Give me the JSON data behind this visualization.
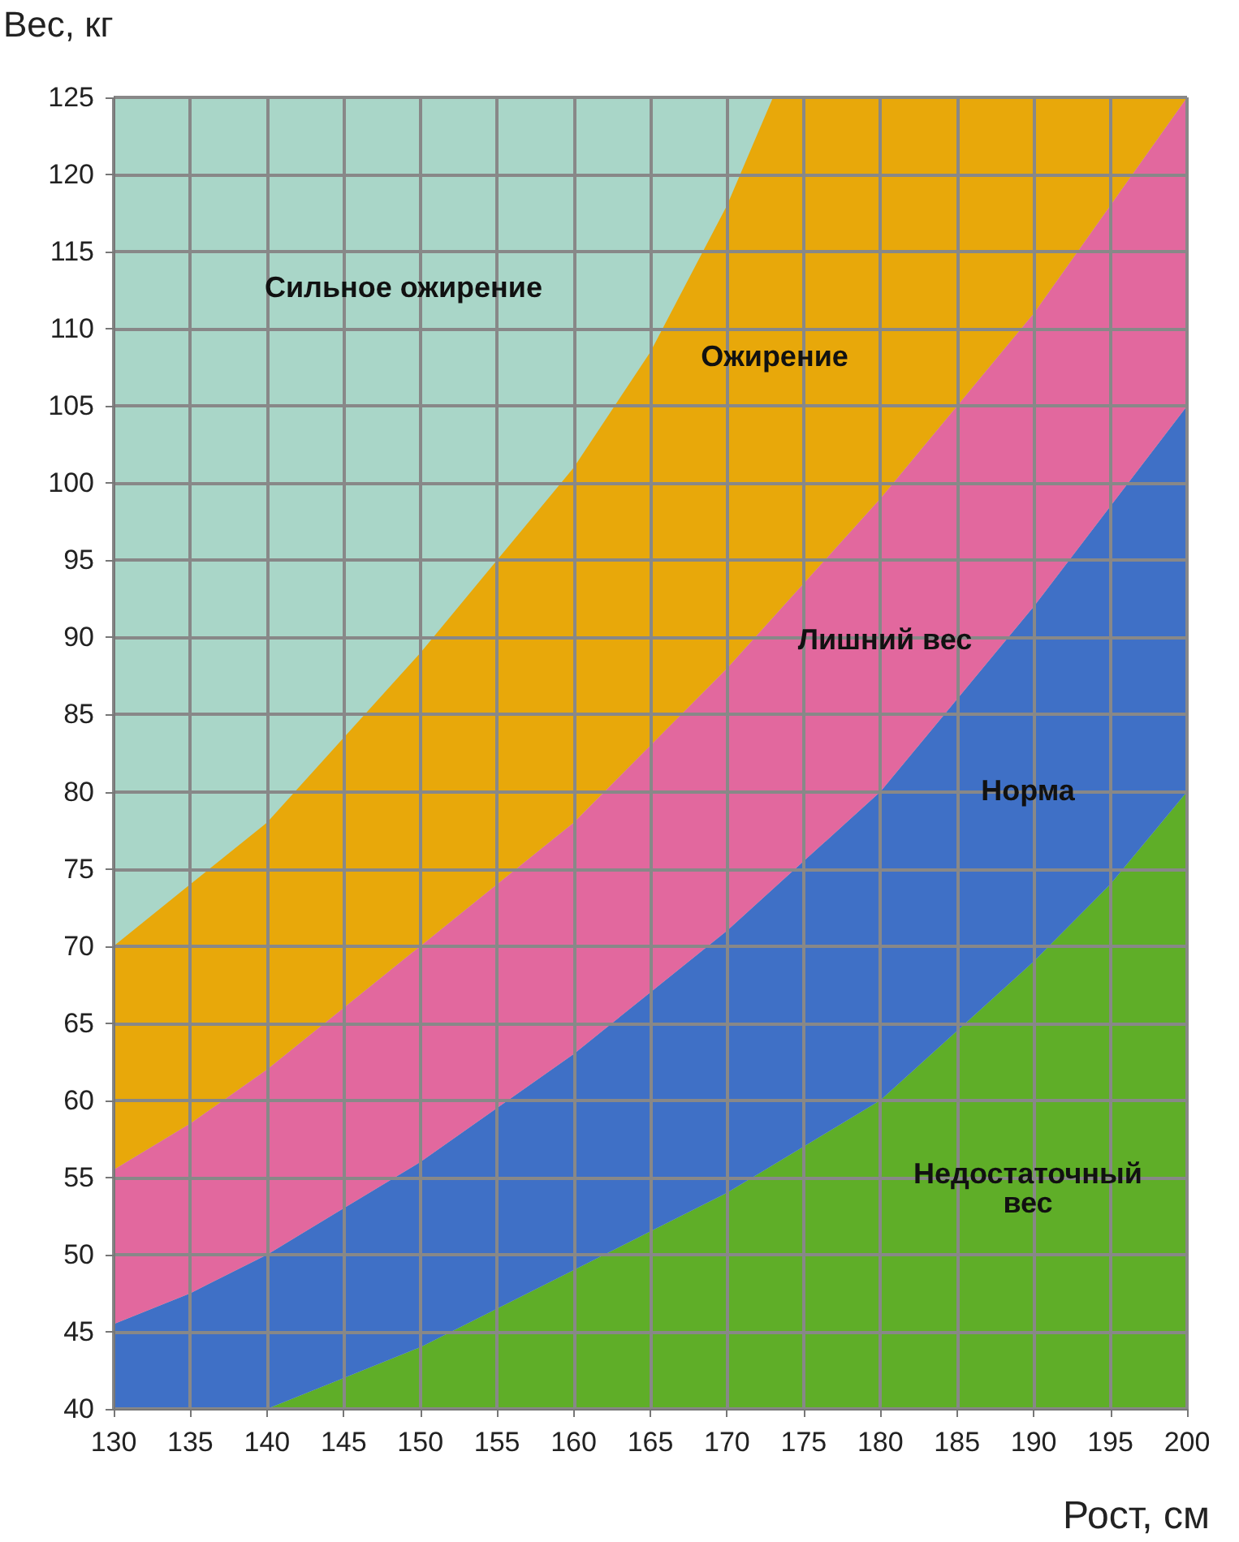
{
  "chart_data": {
    "type": "area",
    "xlabel": "Рост, см",
    "ylabel": "Вес, кг",
    "x": [
      130,
      135,
      140,
      145,
      150,
      155,
      160,
      165,
      170,
      173,
      175,
      180,
      185,
      190,
      195,
      200
    ],
    "xlim": [
      130,
      200
    ],
    "xticks": [
      130,
      135,
      140,
      145,
      150,
      155,
      160,
      165,
      170,
      175,
      180,
      185,
      190,
      195,
      200
    ],
    "ylim": [
      40,
      125
    ],
    "yticks": [
      40,
      45,
      50,
      55,
      60,
      65,
      70,
      75,
      80,
      85,
      90,
      95,
      100,
      105,
      110,
      115,
      120,
      125
    ],
    "grid": true,
    "series": [
      {
        "name": "Недостаточный вес",
        "color": "#5fae28",
        "x": [
          140,
          145,
          150,
          155,
          160,
          165,
          170,
          173,
          175,
          180,
          185,
          190,
          195,
          200
        ],
        "values": [
          40,
          42,
          44,
          46.5,
          49,
          51.5,
          54,
          55.8,
          57,
          60,
          64.5,
          69,
          74,
          80
        ]
      },
      {
        "name": "Норма",
        "color": "#3f70c6",
        "values": [
          45.5,
          47.5,
          50,
          53,
          56,
          59.5,
          63,
          67,
          71,
          73.7,
          75.5,
          80,
          86,
          92,
          98.5,
          105
        ]
      },
      {
        "name": "Лишний вес",
        "color": "#e2689e",
        "values": [
          55.5,
          58.5,
          62,
          66,
          70,
          74,
          78,
          83,
          88,
          91.3,
          93.5,
          99,
          105,
          111,
          118,
          125
        ]
      },
      {
        "name": "Ожирение",
        "color": "#e8a80a",
        "values": [
          70,
          74,
          78,
          83.5,
          89,
          95,
          101,
          108.5,
          118,
          125,
          125,
          125,
          125,
          125,
          125,
          125
        ]
      }
    ],
    "annotations": [
      "Сильное ожирение"
    ]
  }
}
